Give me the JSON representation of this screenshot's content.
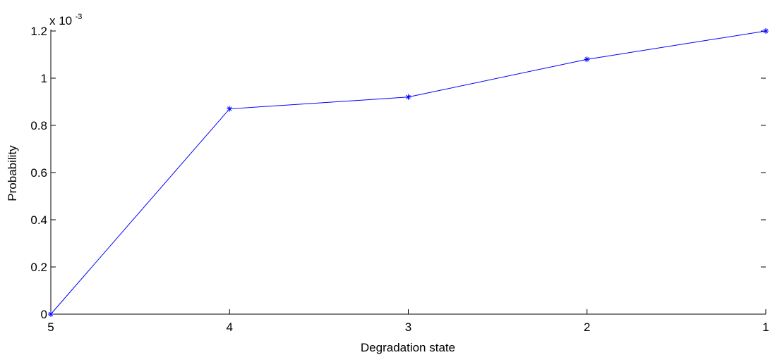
{
  "chart_data": {
    "type": "line",
    "x_categories": [
      "5",
      "4",
      "3",
      "2",
      "1"
    ],
    "series": [
      {
        "values": [
          0,
          0.00087,
          0.00092,
          0.00108,
          0.0012
        ],
        "color": "#0000ff",
        "marker": "asterisk"
      }
    ],
    "xlabel": "Degradation state",
    "ylabel": "Probability",
    "ylim": [
      0,
      0.0012
    ],
    "y_ticks": [
      0,
      0.2,
      0.4,
      0.6,
      0.8,
      1,
      1.2
    ],
    "y_tick_labels": [
      "0",
      "0.2",
      "0.4",
      "0.6",
      "0.8",
      "1",
      "1.2"
    ],
    "y_multiplier": {
      "base": "x 10",
      "exponent": "-3",
      "value": 0.001
    },
    "grid": false,
    "legend": false
  }
}
